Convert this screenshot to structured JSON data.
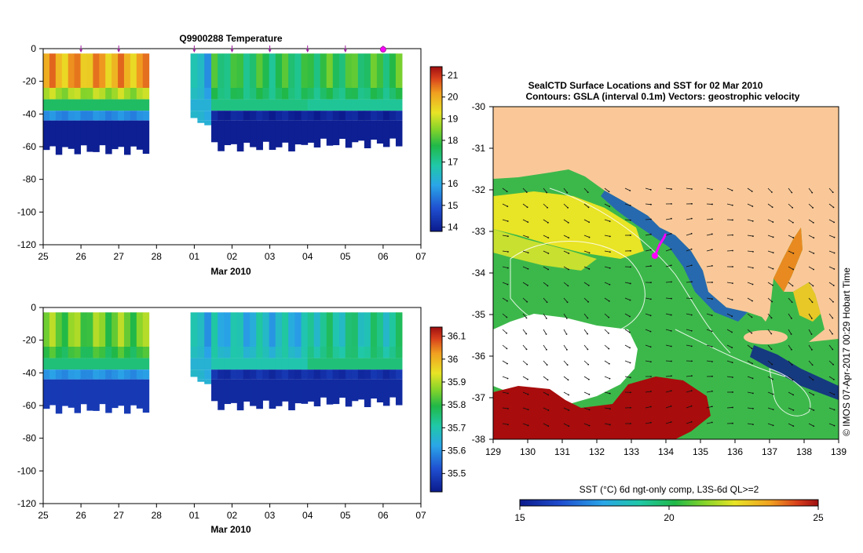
{
  "chart_data": [
    {
      "type": "heatmap",
      "title": "Q9900288  Temperature",
      "xlabel": "Mar 2010",
      "ylabel": "",
      "x_ticks": [
        "25",
        "26",
        "27",
        "28",
        "01",
        "02",
        "03",
        "04",
        "05",
        "06",
        "07"
      ],
      "x_range": [
        25,
        35
      ],
      "y_ticks": [
        "0",
        "-20",
        "-40",
        "-60",
        "-80",
        "-100",
        "-120"
      ],
      "y_range": [
        -120,
        0
      ],
      "profile_markers": [
        26,
        27,
        29,
        30,
        31,
        32,
        33,
        34
      ],
      "highlight_marker": 34,
      "colorbar": {
        "ticks": [
          "14",
          "15",
          "16",
          "17",
          "18",
          "19",
          "20",
          "21"
        ],
        "range": [
          13.8,
          21.4
        ]
      },
      "segments": [
        {
          "start": 25.0,
          "end": 27.8,
          "surface": 20.0,
          "middle": 17.5,
          "lower": 15.6,
          "bottom": 13.9,
          "depth": -62
        },
        {
          "start": 28.9,
          "end": 29.45,
          "surface": 16.2,
          "middle": 16.2,
          "lower": 16.2,
          "bottom": 16.2,
          "depth": -45
        },
        {
          "start": 29.45,
          "end": 32.0,
          "surface": 17.6,
          "middle": 17.2,
          "lower": 14.0,
          "bottom": 13.9,
          "depth": -60
        },
        {
          "start": 32.0,
          "end": 34.5,
          "surface": 17.8,
          "middle": 17.0,
          "lower": 14.0,
          "bottom": 13.9,
          "depth": -58
        }
      ]
    },
    {
      "type": "heatmap",
      "title": "",
      "xlabel": "Mar 2010",
      "ylabel": "",
      "x_ticks": [
        "25",
        "26",
        "27",
        "28",
        "01",
        "02",
        "03",
        "04",
        "05",
        "06",
        "07"
      ],
      "x_range": [
        25,
        35
      ],
      "y_ticks": [
        "0",
        "-20",
        "-40",
        "-60",
        "-80",
        "-100",
        "-120"
      ],
      "y_range": [
        -120,
        0
      ],
      "colorbar": {
        "ticks": [
          "35.5",
          "35.6",
          "35.7",
          "35.8",
          "35.9",
          "36",
          "36.1"
        ],
        "range": [
          35.42,
          36.14
        ]
      },
      "segments": [
        {
          "start": 25.0,
          "end": 27.8,
          "surface": 35.85,
          "middle": 35.75,
          "lower": 35.6,
          "bottom": 35.48,
          "depth": -62
        },
        {
          "start": 28.9,
          "end": 29.45,
          "surface": 35.65,
          "middle": 35.65,
          "lower": 35.65,
          "bottom": 35.65,
          "depth": -45
        },
        {
          "start": 29.45,
          "end": 32.0,
          "surface": 35.66,
          "middle": 35.7,
          "lower": 35.46,
          "bottom": 35.45,
          "depth": -60
        },
        {
          "start": 32.0,
          "end": 34.5,
          "surface": 35.72,
          "middle": 35.75,
          "lower": 35.46,
          "bottom": 35.45,
          "depth": -58
        }
      ]
    },
    {
      "type": "heatmap",
      "title": "SealCTD Surface Locations and SST for 02 Mar 2010",
      "subtitle": "Contours: GSLA (interval 0.1m) Vectors: geostrophic velocity",
      "xlabel": "",
      "ylabel": "",
      "x_ticks": [
        "129",
        "130",
        "131",
        "132",
        "133",
        "134",
        "135",
        "136",
        "137",
        "138",
        "139"
      ],
      "x_range": [
        129,
        139
      ],
      "y_ticks": [
        "-30",
        "-31",
        "-32",
        "-33",
        "-34",
        "-35",
        "-36",
        "-37",
        "-38"
      ],
      "y_range": [
        -38,
        -30
      ],
      "seal_track": [
        {
          "lon": 133.65,
          "lat": -33.7
        },
        {
          "lon": 133.75,
          "lat": -33.5
        },
        {
          "lon": 133.88,
          "lat": -33.3
        },
        {
          "lon": 134.0,
          "lat": -33.1
        }
      ],
      "colorbar": {
        "label": "SST (°C) 6d ngt-only comp, L3S-6d QL>=2",
        "ticks": [
          "15",
          "20",
          "25"
        ],
        "range": [
          15,
          25
        ]
      },
      "side_label": "© IMOS 07-Apr-2017 00:29 Hobart Time"
    }
  ]
}
